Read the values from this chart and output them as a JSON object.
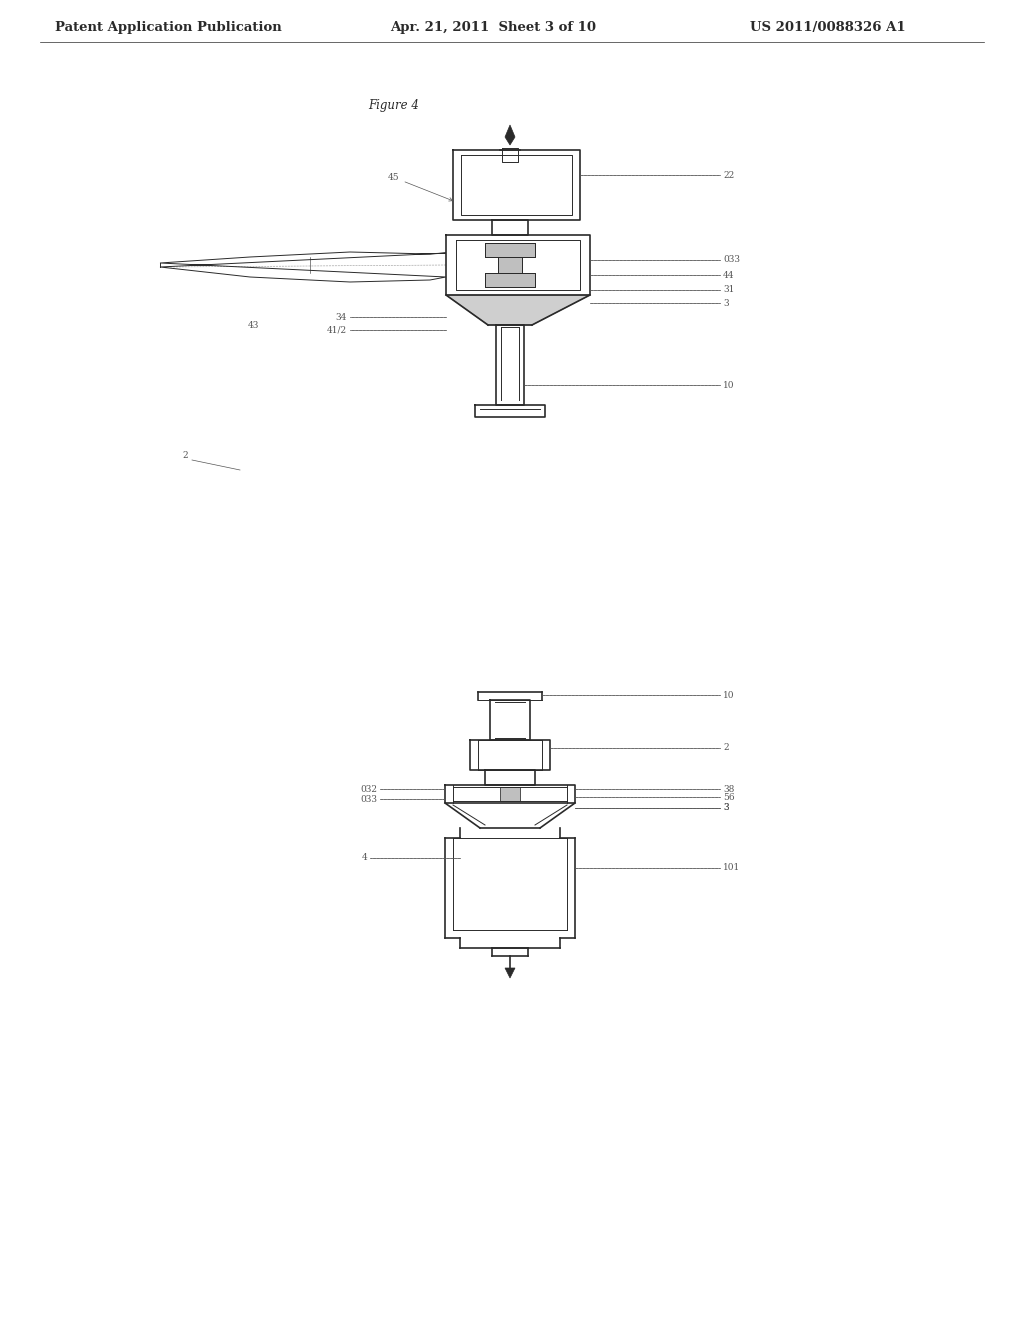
{
  "page_header_left": "Patent Application Publication",
  "page_header_mid": "Apr. 21, 2011  Sheet 3 of 10",
  "page_header_right": "US 2011/0088326 A1",
  "figure_label": "Figure 4",
  "background_color": "#ffffff",
  "line_color": "#2a2a2a",
  "ref_line_color": "#555555",
  "gray_fill": "#b0b0b0",
  "header_font_size": 9.5,
  "label_font_size": 6.5
}
